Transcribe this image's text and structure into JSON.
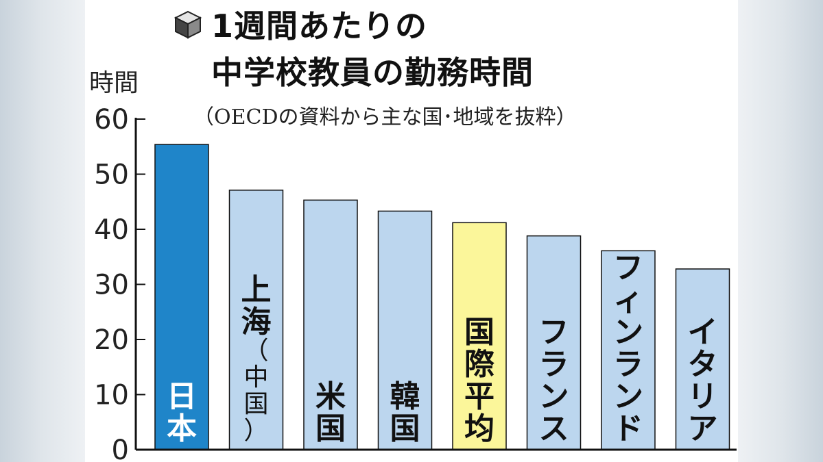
{
  "chart_data": {
    "type": "bar",
    "title_lines": [
      "1週間あたりの",
      "中学校教員の勤務時間"
    ],
    "subtitle": "（OECDの資料から主な国･地域を抜粋）",
    "ylabel": "時間",
    "ylim": [
      0,
      60
    ],
    "yticks": [
      "0",
      "10",
      "20",
      "30",
      "40",
      "50",
      "60"
    ],
    "categories": [
      "日本",
      "上海（中国）",
      "米国",
      "韓国",
      "国際平均",
      "フランス",
      "フィンランド",
      "イタリア"
    ],
    "category_labels": [
      "日本",
      "上海\n（\n中\n国\n）",
      "米国",
      "韓国",
      "国際平均",
      "フランス",
      "フィンランド",
      "イタリア"
    ],
    "values": [
      55.4,
      47.1,
      45.3,
      43.3,
      41.2,
      38.8,
      36.1,
      32.8
    ],
    "bar_colors": [
      "#1f85c9",
      "#bcd6ee",
      "#bcd6ee",
      "#bcd6ee",
      "#fbf69a",
      "#bcd6ee",
      "#bcd6ee",
      "#bcd6ee"
    ],
    "label_colors": [
      "#ffffff",
      "#111111",
      "#111111",
      "#111111",
      "#111111",
      "#111111",
      "#111111",
      "#111111"
    ],
    "grid": false
  },
  "colors": {
    "axis": "#111111",
    "bar_outline": "#111111"
  },
  "icons": {
    "title_marker": "cube-icon"
  }
}
